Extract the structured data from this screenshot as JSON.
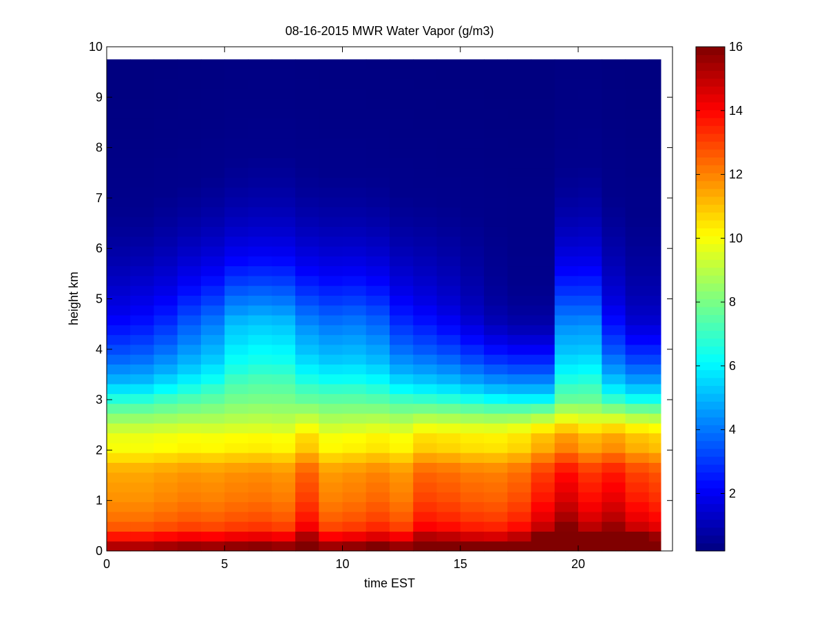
{
  "chart_data": {
    "type": "heatmap",
    "title": "08-16-2015 MWR Water Vapor (g/m3)",
    "xlabel": "time EST",
    "ylabel": "height km",
    "xlim": [
      0,
      24
    ],
    "ylim": [
      0,
      10
    ],
    "x_ticks": [
      0,
      5,
      10,
      15,
      20
    ],
    "y_ticks": [
      0,
      1,
      2,
      3,
      4,
      5,
      6,
      7,
      8,
      9,
      10
    ],
    "data_extent": {
      "x": [
        0,
        23.5
      ],
      "y": [
        0,
        9.75
      ]
    },
    "colormap": "jet",
    "colorbar": {
      "min": 0.2,
      "max": 16,
      "ticks": [
        2,
        4,
        6,
        8,
        10,
        12,
        14,
        16
      ],
      "placement": "right"
    },
    "grid": false,
    "time_hours": [
      0,
      1,
      2,
      3,
      4,
      5,
      6,
      7,
      8,
      9,
      10,
      11,
      12,
      13,
      14,
      15,
      16,
      17,
      18,
      19,
      20,
      21,
      22,
      23
    ],
    "profile_height_km": [
      0,
      0.1,
      0.2,
      0.35,
      0.5,
      0.7,
      1.0,
      1.3,
      1.6,
      1.85,
      2.0,
      2.25,
      2.5,
      2.75,
      3.0,
      3.2,
      3.5,
      4.0,
      4.5,
      5.0,
      5.5,
      6.0,
      6.5,
      7.0,
      8.0,
      9.75
    ],
    "base_profile_g_m3": [
      15.2,
      15.2,
      14.6,
      13.2,
      12.6,
      12.2,
      11.8,
      11.6,
      11.4,
      10.6,
      10.0,
      9.8,
      9.0,
      8.0,
      7.0,
      6.0,
      4.9,
      3.6,
      2.6,
      1.8,
      1.3,
      0.9,
      0.6,
      0.4,
      0.3,
      0.2
    ],
    "time_lowlevel_anomaly": [
      0.0,
      0.0,
      0.2,
      0.4,
      0.3,
      0.5,
      0.6,
      0.4,
      1.6,
      0.3,
      0.5,
      0.8,
      0.4,
      1.5,
      1.3,
      1.0,
      0.9,
      1.3,
      2.4,
      3.5,
      2.6,
      3.2,
      2.3,
      1.9
    ],
    "time_midlevel_anomaly": [
      0.0,
      0.2,
      0.1,
      0.4,
      0.5,
      0.8,
      0.7,
      0.6,
      0.5,
      0.4,
      0.5,
      0.4,
      0.1,
      -0.1,
      -0.3,
      -0.5,
      -0.7,
      -0.8,
      -0.8,
      0.5,
      0.3,
      -0.2,
      -0.4,
      -0.4
    ],
    "time_moist_top_anomaly_km": [
      -0.2,
      -0.2,
      0.1,
      0.3,
      0.5,
      0.8,
      0.9,
      0.9,
      0.6,
      0.5,
      0.5,
      0.4,
      0.1,
      0.0,
      -0.1,
      -0.3,
      -0.5,
      -0.6,
      -0.6,
      0.6,
      0.7,
      0.0,
      -0.4,
      -0.4
    ]
  }
}
